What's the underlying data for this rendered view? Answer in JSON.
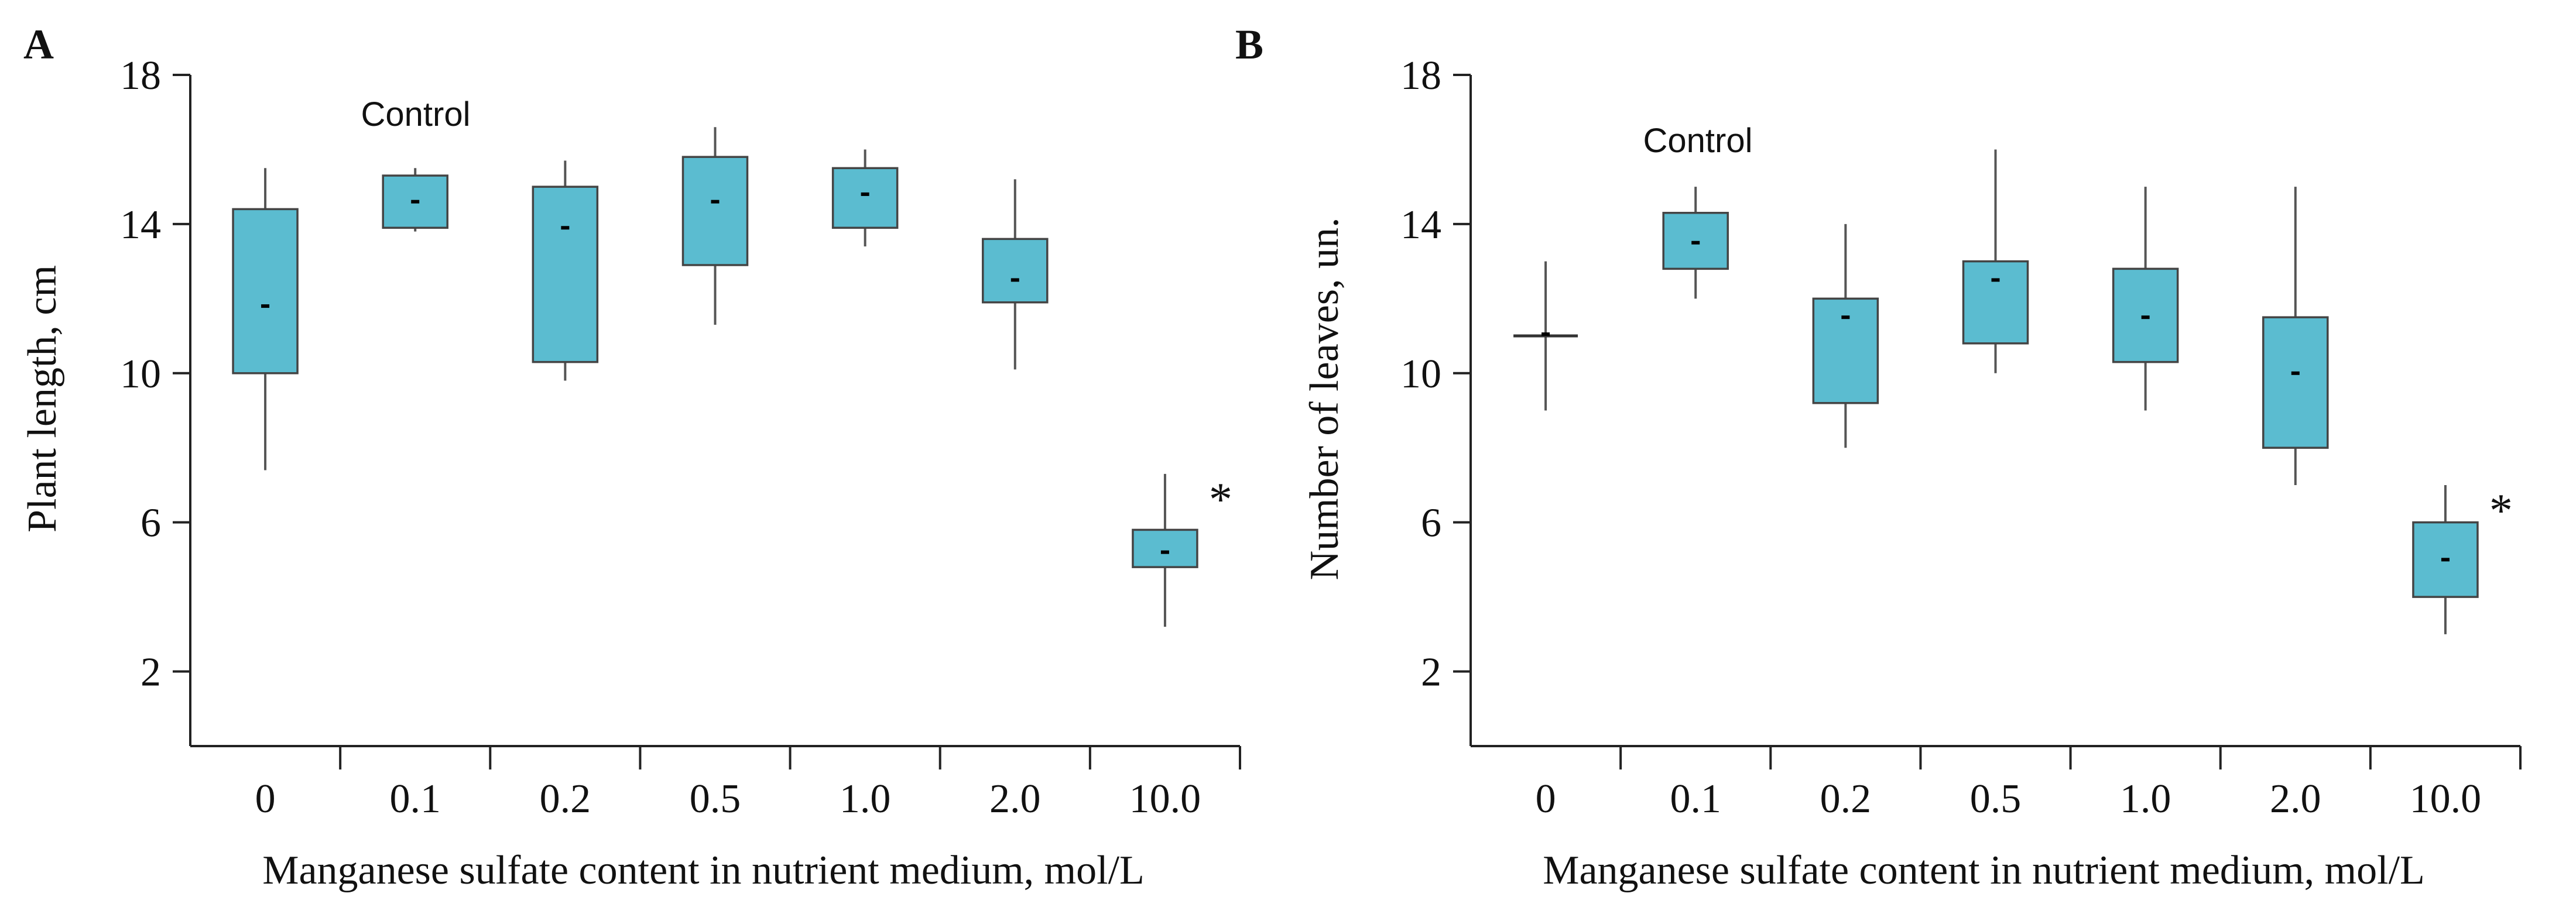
{
  "chart_data": [
    {
      "type": "box",
      "panel_label": "A",
      "xlabel": "Manganese sulfate content in nutrient medium, mol/L",
      "ylabel": "Plant length, cm",
      "ylim": [
        0,
        18
      ],
      "yticks": [
        "2",
        "6",
        "10",
        "14",
        "18"
      ],
      "categories": [
        "0",
        "0.1",
        "0.2",
        "0.5",
        "1.0",
        "2.0",
        "10.0"
      ],
      "boxes": [
        {
          "category": "0",
          "min": 7.4,
          "q1": 10.0,
          "median": 11.8,
          "q3": 14.4,
          "max": 15.5
        },
        {
          "category": "0.1",
          "min": 13.8,
          "q1": 13.9,
          "median": 14.6,
          "q3": 15.3,
          "max": 15.5
        },
        {
          "category": "0.2",
          "min": 9.8,
          "q1": 10.3,
          "median": 13.9,
          "q3": 15.0,
          "max": 15.7
        },
        {
          "category": "0.5",
          "min": 11.3,
          "q1": 12.9,
          "median": 14.6,
          "q3": 15.8,
          "max": 16.6
        },
        {
          "category": "1.0",
          "min": 13.4,
          "q1": 13.9,
          "median": 14.8,
          "q3": 15.5,
          "max": 16.0
        },
        {
          "category": "2.0",
          "min": 10.1,
          "q1": 11.9,
          "median": 12.5,
          "q3": 13.6,
          "max": 15.2
        },
        {
          "category": "10.0",
          "min": 3.2,
          "q1": 4.8,
          "median": 5.2,
          "q3": 5.8,
          "max": 7.3
        }
      ],
      "annotations": {
        "control": {
          "text": "Control",
          "category": "0.1"
        },
        "significance": {
          "text": "*",
          "category": "10.0"
        }
      }
    },
    {
      "type": "box",
      "panel_label": "B",
      "xlabel": "Manganese sulfate content in nutrient medium, mol/L",
      "ylabel": "Number of leaves, un.",
      "ylim": [
        0,
        18
      ],
      "yticks": [
        "2",
        "6",
        "10",
        "14",
        "18"
      ],
      "categories": [
        "0",
        "0.1",
        "0.2",
        "0.5",
        "1.0",
        "2.0",
        "10.0"
      ],
      "boxes": [
        {
          "category": "0",
          "min": 9.0,
          "q1": 11.0,
          "median": 11.0,
          "q3": 11.0,
          "max": 13.0
        },
        {
          "category": "0.1",
          "min": 12.0,
          "q1": 12.8,
          "median": 13.5,
          "q3": 14.3,
          "max": 15.0
        },
        {
          "category": "0.2",
          "min": 8.0,
          "q1": 9.2,
          "median": 11.5,
          "q3": 12.0,
          "max": 14.0
        },
        {
          "category": "0.5",
          "min": 10.0,
          "q1": 10.8,
          "median": 12.5,
          "q3": 13.0,
          "max": 16.0
        },
        {
          "category": "1.0",
          "min": 9.0,
          "q1": 10.3,
          "median": 11.5,
          "q3": 12.8,
          "max": 15.0
        },
        {
          "category": "2.0",
          "min": 7.0,
          "q1": 8.0,
          "median": 10.0,
          "q3": 11.5,
          "max": 15.0
        },
        {
          "category": "10.0",
          "min": 3.0,
          "q1": 4.0,
          "median": 5.0,
          "q3": 6.0,
          "max": 7.0
        }
      ],
      "annotations": {
        "control": {
          "text": "Control",
          "category": "0.1"
        },
        "significance": {
          "text": "*",
          "category": "10.0"
        }
      }
    }
  ],
  "style": {
    "box_fill": "#5bbcd0",
    "box_stroke": "#444444",
    "whisker_color": "#555555",
    "median_color": "#000000",
    "axis_color": "#222222"
  }
}
